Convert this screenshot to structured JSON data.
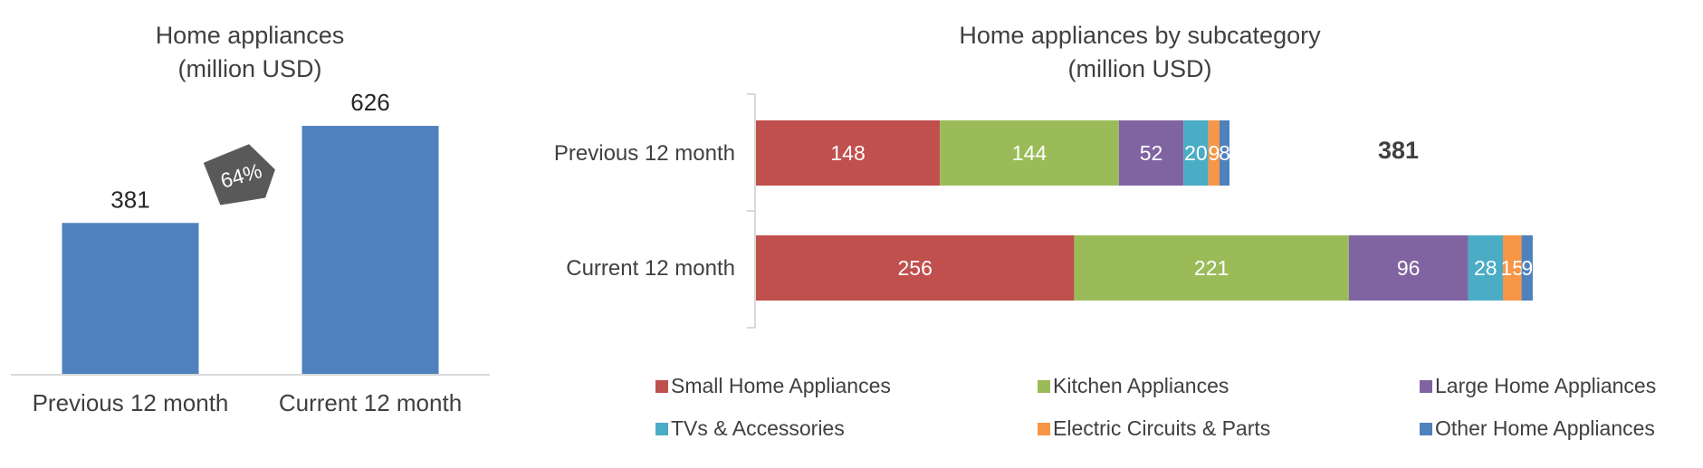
{
  "chart_data": [
    {
      "type": "bar",
      "title": "Home appliances",
      "subtitle": "(million USD)",
      "categories": [
        "Previous 12 month",
        "Current 12 month"
      ],
      "values": [
        381,
        626
      ],
      "color": "#4F81BD",
      "annotation": "64%",
      "ylim": [
        0,
        700
      ],
      "grid": false
    },
    {
      "type": "bar",
      "orientation": "horizontal",
      "stacked": true,
      "title": "Home appliances by subcategory",
      "subtitle": "(million USD)",
      "categories": [
        "Previous 12 month",
        "Current 12 month"
      ],
      "series": [
        {
          "name": "Small Home Appliances",
          "values": [
            148,
            256
          ],
          "color": "#C0504D"
        },
        {
          "name": "Kitchen Appliances",
          "values": [
            144,
            221
          ],
          "color": "#9BBB59"
        },
        {
          "name": "Large Home Appliances",
          "values": [
            52,
            96
          ],
          "color": "#8064A2"
        },
        {
          "name": "TVs & Accessories",
          "values": [
            20,
            28
          ],
          "color": "#4BACC6"
        },
        {
          "name": "Electric Circuits & Parts",
          "values": [
            9,
            15
          ],
          "color": "#F79646"
        },
        {
          "name": "Other Home Appliances",
          "values": [
            8,
            9
          ],
          "color": "#4F81BD"
        }
      ],
      "totals": [
        381,
        null
      ],
      "legend": "bottom",
      "grid": false
    }
  ]
}
